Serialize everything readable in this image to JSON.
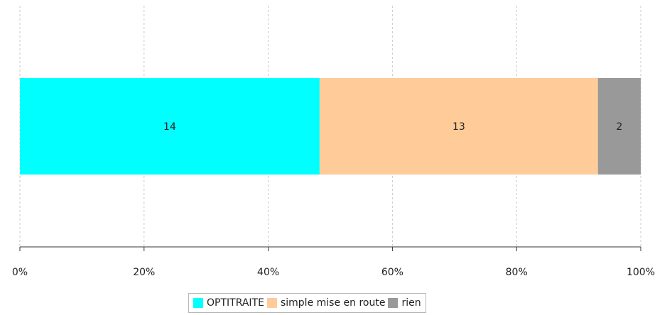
{
  "chart_data": {
    "type": "bar",
    "orientation": "horizontal",
    "stacked": "percent",
    "categories": [
      ""
    ],
    "series": [
      {
        "name": "OPTITRAITE",
        "values": [
          14
        ],
        "color": "#00ffff"
      },
      {
        "name": "simple mise en route",
        "values": [
          13
        ],
        "color": "#ffcc99"
      },
      {
        "name": "rien",
        "values": [
          2
        ],
        "color": "#999999"
      }
    ],
    "xlim": [
      0,
      100
    ],
    "xticks": [
      "0%",
      "20%",
      "40%",
      "60%",
      "80%",
      "100%"
    ],
    "grid": true,
    "legend_position": "bottom"
  }
}
